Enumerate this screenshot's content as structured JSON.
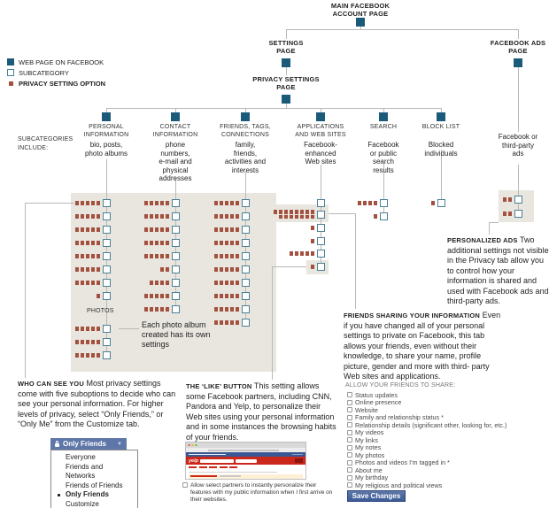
{
  "colors": {
    "page_square": "#1b5a78",
    "subcategory_border": "#4a8197",
    "option_dot": "#a3503e",
    "panel": "#e8e6df",
    "connector": "#b9b9b9",
    "facebook_blue": "#5e77a8",
    "save_button_blue": "#3c5a96"
  },
  "legend": {
    "page": "WEB PAGE ON FACEBOOK",
    "subcategory": "SUBCATEGORY",
    "option": "PRIVACY SETTING OPTION"
  },
  "pages": {
    "main": "MAIN FACEBOOK\nACCOUNT PAGE",
    "settings": "SETTINGS\nPAGE",
    "privacy": "PRIVACY SETTINGS\nPAGE",
    "ads": "FACEBOOK ADS\nPAGE"
  },
  "subcategories_label": "SUBCATEGORIES\nINCLUDE:",
  "columns": [
    {
      "title": "PERSONAL\nINFORMATION",
      "subtitle": "bio, posts,\nphoto albums",
      "rows": [
        5,
        5,
        5,
        5,
        5,
        5,
        5,
        1
      ]
    },
    {
      "title": "CONTACT\nINFORMATION",
      "subtitle": "phone\nnumbers,\ne-mail and\nphysical\naddresses",
      "rows": [
        5,
        5,
        5,
        5,
        5,
        2,
        4,
        5,
        5
      ]
    },
    {
      "title": "FRIENDS, TAGS,\nCONNECTIONS",
      "subtitle": "family,\nfriends,\nactivities and\ninterests",
      "rows": [
        5,
        5,
        5,
        5,
        5,
        5,
        5,
        5,
        5,
        5
      ]
    },
    {
      "title": "APPLICATIONS\nAND WEB SITES",
      "subtitle": "Facebook-\nenhanced\nWeb sites",
      "rows": [
        0,
        15,
        1,
        1,
        5,
        1
      ]
    },
    {
      "title": "SEARCH",
      "subtitle": "Facebook\nor public\nsearch\nresults",
      "rows": [
        4,
        1
      ]
    },
    {
      "title": "BLOCK LIST",
      "subtitle": "Blocked\nindividuals",
      "rows": [
        1
      ]
    },
    {
      "title": "",
      "subtitle": "Facebook or\nthird-party\nads",
      "rows": [
        2,
        2
      ]
    }
  ],
  "photos": {
    "label": "PHOTOS",
    "rows": [
      5,
      5,
      5
    ],
    "note": "Each photo album\ncreated has its own\nsettings"
  },
  "notes": {
    "who_can_see": {
      "heading": "WHO CAN SEE YOU",
      "body": "Most privacy settings come with five suboptions to decide who can see your personal information. For higher levels of privacy, select “Only Friends,” or “Only Me” from the Customize tab."
    },
    "like_button": {
      "heading": "THE ‘LIKE’ BUTTON",
      "body": "This setting allows some Facebook partners, including CNN, Pandora and Yelp, to personalize their Web sites using your personal information and in some instances the browsing habits of your friends."
    },
    "friends_sharing": {
      "heading": "FRIENDS SHARING YOUR INFORMATION",
      "body": "Even if you have changed all of your personal settings to private on Facebook, this tab allows your friends, even without their knowledge, to share your name, profile picture, gender and more with third- party Web sites and applications."
    },
    "personalized_ads": {
      "heading": "PERSONALIZED ADS",
      "body": "Two additional settings not visible in the Privacy tab allow you to control how your information is shared and used with Facebook ads and third-party ads."
    }
  },
  "dropdown": {
    "selected": "Only Friends",
    "options": [
      "Everyone",
      "Friends and Networks",
      "Friends of Friends",
      "Only Friends",
      "Customize"
    ]
  },
  "share_panel": {
    "heading": "ALLOW YOUR FRIENDS TO SHARE:",
    "items": [
      "Status updates",
      "Online presence",
      "Website",
      "Family and relationship status *",
      "Relationship details (significant other, looking for, etc.)",
      "My videos",
      "My links",
      "My notes",
      "My photos",
      "Photos and videos I'm tagged in *",
      "About me",
      "My birthday",
      "My religious and political views"
    ],
    "save_label": "Save Changes"
  },
  "partner_note": "Allow select partners to instantly personalize their features with my public information when I first arrive on their websites.",
  "mini_browser": {
    "logo": "yelp"
  }
}
